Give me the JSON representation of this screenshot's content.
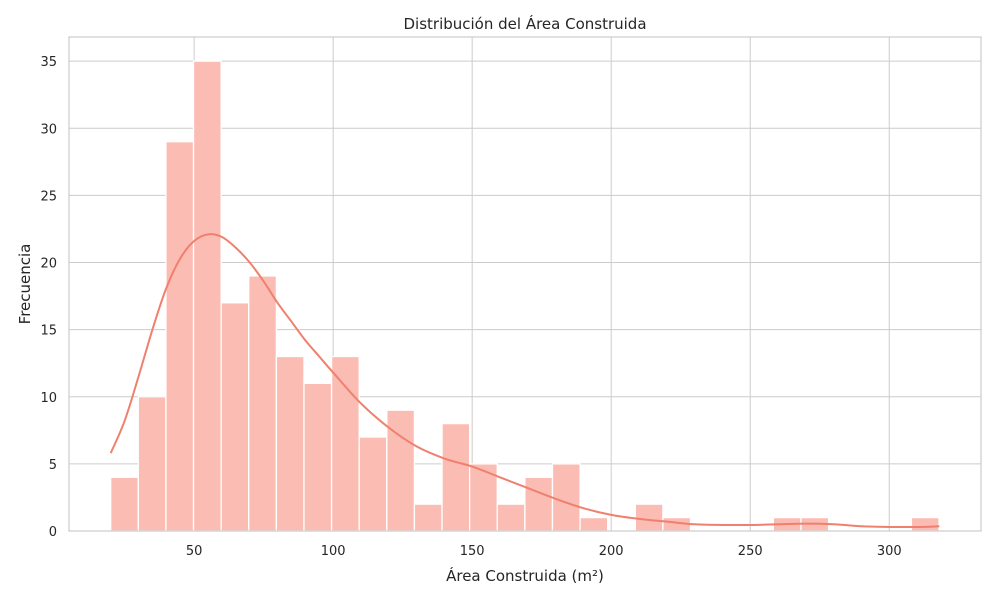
{
  "chart_data": {
    "type": "bar",
    "title": "Distribución del Área Construida",
    "xlabel": "Área Construida (m²)",
    "ylabel": "Frecuencia",
    "xlim": [
      5,
      333
    ],
    "ylim": [
      0,
      36.8
    ],
    "x_ticks": [
      50,
      100,
      150,
      200,
      250,
      300
    ],
    "y_ticks": [
      0,
      5,
      10,
      15,
      20,
      25,
      30,
      35
    ],
    "grid": true,
    "bar_color": "#fbbcb3",
    "kde_color": "#f0806e",
    "bin_start": 20,
    "bin_width": 9.93,
    "values": [
      4,
      10,
      29,
      35,
      17,
      19,
      13,
      11,
      13,
      7,
      9,
      2,
      8,
      5,
      2,
      4,
      5,
      1,
      0,
      2,
      1,
      0,
      0,
      0,
      1,
      1,
      0,
      0,
      0,
      1
    ],
    "kde": {
      "x": [
        20,
        25,
        30,
        35,
        40,
        45,
        50,
        55,
        60,
        65,
        70,
        75,
        80,
        85,
        90,
        95,
        100,
        110,
        120,
        130,
        140,
        150,
        160,
        170,
        180,
        190,
        200,
        210,
        220,
        230,
        240,
        250,
        260,
        270,
        280,
        290,
        300,
        310,
        318
      ],
      "y": [
        5.8,
        8.2,
        11.5,
        15.0,
        18.1,
        20.3,
        21.6,
        22.1,
        21.9,
        21.1,
        20.0,
        18.6,
        17.0,
        15.6,
        14.2,
        13.0,
        11.8,
        9.5,
        7.7,
        6.3,
        5.4,
        4.8,
        4.0,
        3.2,
        2.4,
        1.7,
        1.2,
        0.9,
        0.7,
        0.5,
        0.45,
        0.45,
        0.5,
        0.55,
        0.5,
        0.35,
        0.3,
        0.3,
        0.35
      ]
    }
  }
}
